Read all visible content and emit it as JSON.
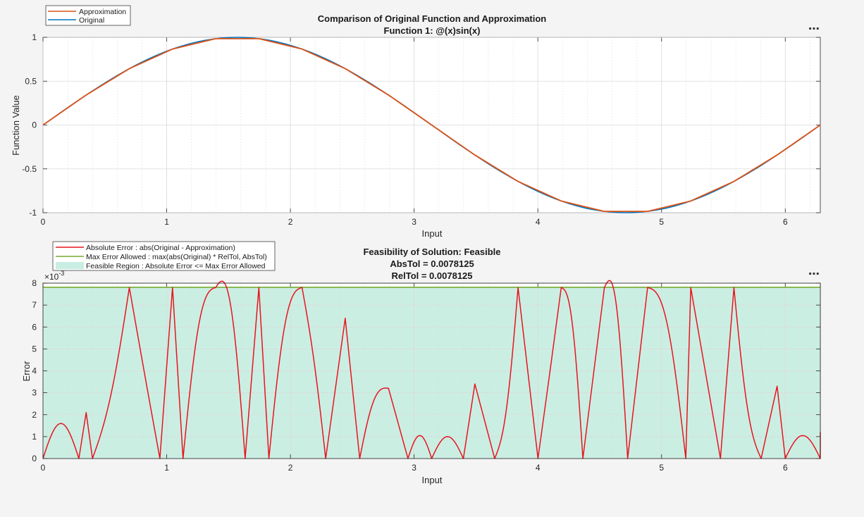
{
  "colors": {
    "approximation": "#d95319",
    "original": "#0072bd",
    "abs_error": "#e8141e",
    "max_error": "#77ac30",
    "feasible_region": "#c8ede2"
  },
  "icons": [
    "more-options-icon",
    "more-options-icon"
  ],
  "toolbar": {
    "more_label": "⋯"
  },
  "chart_data": [
    {
      "type": "line",
      "title": "Comparison of Original Function and Approximation",
      "subtitle": "Function 1: @(x)sin(x)",
      "xlabel": "Input",
      "ylabel": "Function Value",
      "xlim": [
        0,
        6.2832
      ],
      "ylim": [
        -1,
        1
      ],
      "xticks": [
        0,
        1,
        2,
        3,
        4,
        5,
        6
      ],
      "yticks": [
        -1,
        -0.5,
        0,
        0.5,
        1
      ],
      "xtick_labels": [
        "0",
        "1",
        "2",
        "3",
        "4",
        "5",
        "6"
      ],
      "ytick_labels": [
        "-1",
        "-0.5",
        "0",
        "0.5",
        "1"
      ],
      "grid": true,
      "legend_position": "top-left, outside",
      "series": [
        {
          "name": "Approximation",
          "color": "#d95319",
          "x": [
            0,
            0.349,
            0.698,
            1.047,
            1.396,
            1.745,
            2.094,
            2.443,
            2.793,
            3.142,
            3.491,
            3.84,
            4.189,
            4.538,
            4.887,
            5.236,
            5.585,
            5.934,
            6.283
          ],
          "y": [
            0,
            0.342,
            0.643,
            0.866,
            0.985,
            0.985,
            0.866,
            0.643,
            0.342,
            0,
            -0.342,
            -0.643,
            -0.866,
            -0.985,
            -0.985,
            -0.866,
            -0.643,
            -0.342,
            0
          ]
        },
        {
          "name": "Original",
          "color": "#0072bd",
          "x": [
            0,
            0.262,
            0.524,
            0.785,
            1.047,
            1.309,
            1.571,
            1.833,
            2.094,
            2.356,
            2.618,
            2.88,
            3.142,
            3.403,
            3.665,
            3.927,
            4.189,
            4.451,
            4.712,
            4.974,
            5.236,
            5.498,
            5.76,
            6.021,
            6.283
          ],
          "y": [
            0,
            0.259,
            0.5,
            0.707,
            0.866,
            0.966,
            1,
            0.966,
            0.866,
            0.707,
            0.5,
            0.259,
            0,
            -0.259,
            -0.5,
            -0.707,
            -0.866,
            -0.966,
            -1,
            -0.966,
            -0.866,
            -0.707,
            -0.5,
            -0.259,
            0
          ]
        }
      ]
    },
    {
      "type": "line",
      "title": "Feasibility of Solution: Feasible",
      "subtitle_lines": [
        "AbsTol = 0.0078125",
        "RelTol = 0.0078125"
      ],
      "xlabel": "Input",
      "ylabel": "Error",
      "y_exponent_label": "×10",
      "y_exponent": "-3",
      "y_scale_multiplier": 0.001,
      "xlim": [
        0,
        6.2832
      ],
      "ylim": [
        0,
        8
      ],
      "xticks": [
        0,
        1,
        2,
        3,
        4,
        5,
        6
      ],
      "yticks": [
        0,
        1,
        2,
        3,
        4,
        5,
        6,
        7,
        8
      ],
      "xtick_labels": [
        "0",
        "1",
        "2",
        "3",
        "4",
        "5",
        "6"
      ],
      "ytick_labels": [
        "0",
        "1",
        "2",
        "3",
        "4",
        "5",
        "6",
        "7",
        "8"
      ],
      "grid": true,
      "legend_position": "top-left, outside",
      "series": [
        {
          "name": "Absolute Error : abs(Original - Approximation)",
          "color": "#e8141e",
          "x": [
            0,
            0.29,
            0.349,
            0.4,
            0.698,
            0.945,
            1.047,
            1.132,
            1.396,
            1.634,
            1.745,
            1.826,
            2.094,
            2.285,
            2.443,
            2.56,
            2.793,
            2.95,
            3.142,
            3.398,
            3.491,
            3.651,
            3.84,
            4.001,
            4.189,
            4.364,
            4.538,
            4.726,
            4.887,
            5.196,
            5.236,
            5.476,
            5.585,
            5.805,
            5.934,
            6.0,
            6.283
          ],
          "y": [
            0,
            0,
            2.1,
            0,
            7.8,
            0,
            7.8,
            0,
            7.8,
            0,
            7.8,
            0,
            7.8,
            0,
            6.4,
            0,
            3.2,
            0,
            0,
            0,
            3.4,
            0,
            7.8,
            0,
            7.8,
            0,
            7.8,
            0,
            7.8,
            0,
            7.8,
            0,
            7.8,
            0,
            3.3,
            0,
            0
          ],
          "peaks_x": [
            0.17,
            0.5,
            0.87,
            1.22,
            1.57,
            1.92,
            2.27,
            2.62,
            2.98,
            3.3,
            3.66,
            4.02,
            4.36,
            4.72,
            5.06,
            5.41,
            5.76,
            6.11
          ],
          "peaks_y": [
            1.6,
            2.8,
            3.85,
            6.5,
            7.4,
            6.5,
            4.55,
            2.8,
            1.05,
            1.0,
            2.05,
            3.85,
            6.5,
            7.45,
            6.5,
            3.9,
            2.1,
            1.05
          ],
          "end_value": 1.2
        },
        {
          "name": "Max Error Allowed : max(abs(Original) * RelTol, AbsTol)",
          "color": "#77ac30",
          "x": [
            0,
            6.2832
          ],
          "y": [
            7.8125,
            7.8125
          ]
        },
        {
          "name": "Feasible Region : Absolute Error <= Max Error Allowed",
          "color": "#c8ede2",
          "x": [
            0,
            6.2832
          ],
          "y": [
            7.8125,
            7.8125
          ]
        }
      ]
    }
  ]
}
